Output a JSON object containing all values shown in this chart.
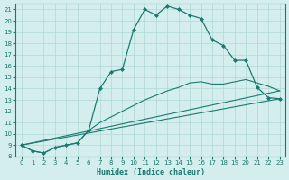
{
  "xlabel": "Humidex (Indice chaleur)",
  "background_color": "#d4eeed",
  "line_color": "#1a7a6e",
  "xlim": [
    -0.5,
    23.5
  ],
  "ylim": [
    8,
    21.5
  ],
  "yticks": [
    8,
    9,
    10,
    11,
    12,
    13,
    14,
    15,
    16,
    17,
    18,
    19,
    20,
    21
  ],
  "xticks": [
    0,
    1,
    2,
    3,
    4,
    5,
    6,
    7,
    8,
    9,
    10,
    11,
    12,
    13,
    14,
    15,
    16,
    17,
    18,
    19,
    20,
    21,
    22,
    23
  ],
  "curve1_x": [
    0,
    1,
    2,
    3,
    4,
    5,
    6,
    7,
    8,
    9,
    10,
    11,
    12,
    13,
    14,
    15,
    16,
    17,
    18,
    19,
    20,
    21,
    22,
    23
  ],
  "curve1_y": [
    9.0,
    8.5,
    8.3,
    8.8,
    9.0,
    9.2,
    10.3,
    14.0,
    15.5,
    15.7,
    19.2,
    21.0,
    20.5,
    21.3,
    21.0,
    20.5,
    20.2,
    18.3,
    17.8,
    16.5,
    16.5,
    14.1,
    13.2,
    13.1
  ],
  "curve2_x": [
    0,
    1,
    2,
    3,
    4,
    5,
    6,
    7,
    8,
    9,
    10,
    11,
    12,
    13,
    14,
    15,
    16,
    17,
    18,
    19,
    20,
    21,
    22,
    23
  ],
  "curve2_y": [
    9.0,
    8.5,
    8.3,
    8.8,
    9.0,
    9.2,
    10.3,
    11.0,
    11.5,
    12.0,
    12.5,
    13.0,
    13.4,
    13.8,
    14.1,
    14.5,
    14.6,
    14.4,
    14.4,
    14.6,
    14.8,
    14.5,
    14.2,
    13.8
  ],
  "line3_x": [
    0,
    23
  ],
  "line3_y": [
    9.0,
    13.1
  ],
  "line4_x": [
    0,
    23
  ],
  "line4_y": [
    9.0,
    13.8
  ]
}
